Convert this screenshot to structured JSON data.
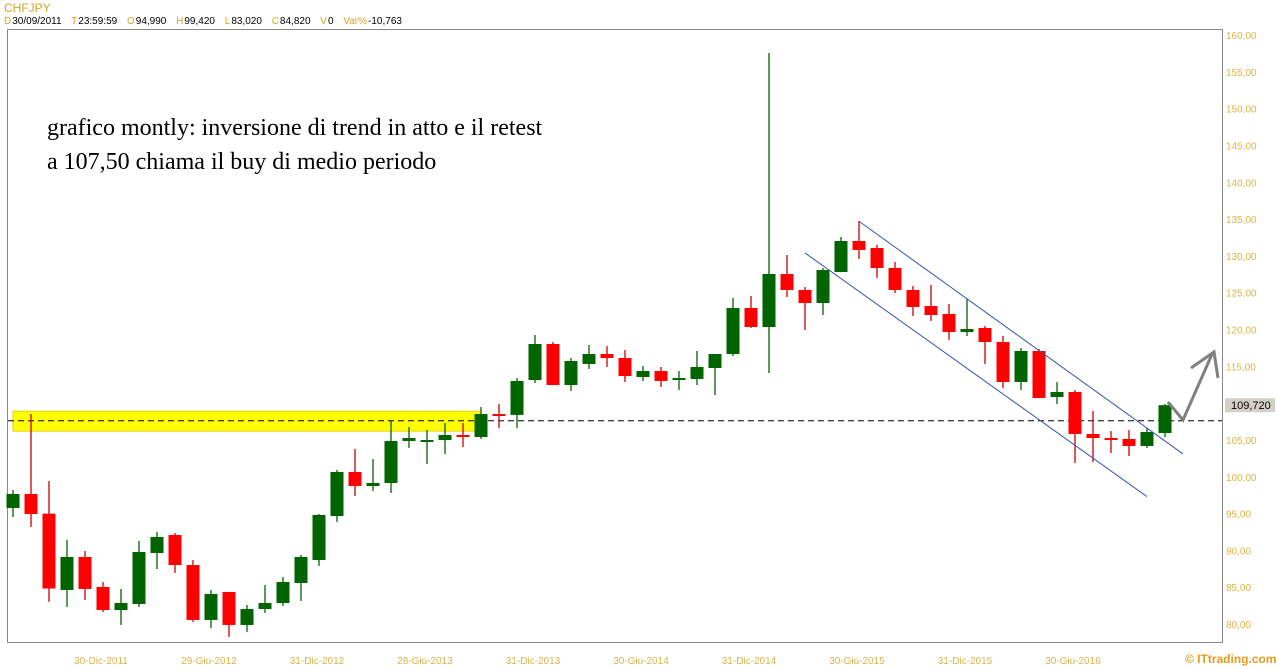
{
  "header": {
    "symbol": "CHFJPY",
    "fields": [
      {
        "key": "D",
        "value": "30/09/2011"
      },
      {
        "key": "T",
        "value": "23:59:59"
      },
      {
        "key": "O",
        "value": "94,990"
      },
      {
        "key": "H",
        "value": "99,420"
      },
      {
        "key": "L",
        "value": "83,020"
      },
      {
        "key": "C",
        "value": "84,820"
      },
      {
        "key": "V",
        "value": "0"
      },
      {
        "key": "Var%",
        "value": "-10,763"
      }
    ]
  },
  "annotation_text": {
    "line1": "grafico montly: inversione di trend in atto e il retest",
    "line2": "a 107,50 chiama il buy di medio periodo"
  },
  "copyright": "© ITtrading.com",
  "chart_data": {
    "type": "candlestick",
    "symbol": "CHFJPY",
    "timeframe": "monthly",
    "ylim": [
      80,
      160
    ],
    "y_ticks": [
      "160,00",
      "155,00",
      "150,00",
      "145,00",
      "140,00",
      "135,00",
      "130,00",
      "125,00",
      "120,00",
      "115,00",
      "105,00",
      "100,00",
      "95,00",
      "90,00",
      "85,00",
      "80,00"
    ],
    "y_tick_values": [
      160,
      155,
      150,
      145,
      140,
      135,
      130,
      125,
      120,
      115,
      105,
      100,
      95,
      90,
      85,
      80
    ],
    "x_ticks": [
      {
        "label": "30-Dic-2011",
        "date": "2011-12"
      },
      {
        "label": "29-Giu-2012",
        "date": "2012-06"
      },
      {
        "label": "31-Dic-2012",
        "date": "2012-12"
      },
      {
        "label": "28-Giu-2013",
        "date": "2013-06"
      },
      {
        "label": "31-Dic-2013",
        "date": "2013-12"
      },
      {
        "label": "30-Giu-2014",
        "date": "2014-06"
      },
      {
        "label": "31-Dic-2014",
        "date": "2014-12"
      },
      {
        "label": "30-Giu-2015",
        "date": "2015-06"
      },
      {
        "label": "31-Dic-2015",
        "date": "2015-12"
      },
      {
        "label": "30-Giu-2016",
        "date": "2016-06"
      }
    ],
    "last_price": {
      "value": 109.72,
      "label": "109,720"
    },
    "colors": {
      "up": "#006400",
      "down": "#ff0000",
      "channel": "#3355aa",
      "zone": "#ffff00",
      "arrow": "#808080",
      "axis_text": "#d9b44a"
    },
    "support_line": 107.6,
    "support_zone": {
      "from_date": "2011-07",
      "to_date": "2013-09",
      "low": 106.2,
      "high": 108.9
    },
    "channel": {
      "upper": [
        {
          "date": "2015-06",
          "price": 134.7
        },
        {
          "date": "2016-12",
          "price": 103.1
        }
      ],
      "lower": [
        {
          "date": "2015-03",
          "price": 130.4
        },
        {
          "date": "2016-10",
          "price": 97.3
        }
      ]
    },
    "candles_columns": [
      "date",
      "open",
      "high",
      "low",
      "close"
    ],
    "candles": [
      [
        "2011-07",
        95.76,
        98.2,
        94.53,
        97.66
      ],
      [
        "2011-08",
        97.66,
        108.52,
        93.18,
        94.94
      ],
      [
        "2011-09",
        94.99,
        99.42,
        83.02,
        84.82
      ],
      [
        "2011-10",
        84.62,
        91.41,
        82.31,
        89.1
      ],
      [
        "2011-11",
        89.1,
        89.92,
        83.26,
        84.76
      ],
      [
        "2011-12",
        85.03,
        85.71,
        81.63,
        81.9
      ],
      [
        "2012-01",
        81.9,
        84.76,
        79.87,
        82.85
      ],
      [
        "2012-02",
        82.72,
        91.28,
        82.31,
        89.78
      ],
      [
        "2012-03",
        89.64,
        92.5,
        87.47,
        91.82
      ],
      [
        "2012-04",
        92.09,
        92.36,
        86.93,
        88.01
      ],
      [
        "2012-05",
        88.01,
        88.69,
        80.27,
        80.55
      ],
      [
        "2012-06",
        80.55,
        84.62,
        79.46,
        84.08
      ],
      [
        "2012-07",
        84.35,
        84.35,
        78.24,
        79.87
      ],
      [
        "2012-08",
        79.87,
        82.58,
        78.92,
        82.04
      ],
      [
        "2012-09",
        82.04,
        85.3,
        81.5,
        82.85
      ],
      [
        "2012-10",
        82.85,
        86.39,
        82.45,
        85.71
      ],
      [
        "2012-11",
        85.57,
        89.37,
        83.13,
        89.1
      ],
      [
        "2012-12",
        88.69,
        94.94,
        87.88,
        94.81
      ],
      [
        "2013-01",
        94.67,
        100.92,
        93.86,
        100.65
      ],
      [
        "2013-02",
        100.65,
        103.77,
        97.39,
        98.74
      ],
      [
        "2013-03",
        98.74,
        102.41,
        98.07,
        99.15
      ],
      [
        "2013-04",
        99.15,
        107.71,
        97.79,
        104.86
      ],
      [
        "2013-05",
        104.86,
        106.76,
        103.91,
        105.26
      ],
      [
        "2013-06",
        104.86,
        106.35,
        101.73,
        104.99
      ],
      [
        "2013-07",
        104.99,
        107.3,
        103.09,
        105.67
      ],
      [
        "2013-08",
        105.67,
        107.3,
        104.04,
        105.53
      ],
      [
        "2013-09",
        105.4,
        109.48,
        105.13,
        108.52
      ],
      [
        "2013-10",
        108.52,
        109.88,
        106.62,
        108.4
      ],
      [
        "2013-11",
        108.4,
        113.41,
        106.62,
        113.01
      ],
      [
        "2013-12",
        113.14,
        119.25,
        112.73,
        118.03
      ],
      [
        "2014-01",
        118.03,
        118.3,
        112.46,
        112.46
      ],
      [
        "2014-02",
        112.46,
        116.13,
        111.65,
        115.72
      ],
      [
        "2014-03",
        115.32,
        117.9,
        114.64,
        116.67
      ],
      [
        "2014-04",
        116.67,
        117.76,
        114.91,
        116.13
      ],
      [
        "2014-05",
        116.13,
        117.22,
        112.87,
        113.68
      ],
      [
        "2014-06",
        113.55,
        115.04,
        113.01,
        114.36
      ],
      [
        "2014-07",
        114.36,
        114.91,
        112.19,
        113.01
      ],
      [
        "2014-08",
        113.14,
        114.36,
        111.78,
        113.41
      ],
      [
        "2014-09",
        113.28,
        117.08,
        112.46,
        114.91
      ],
      [
        "2014-10",
        114.77,
        116.67,
        111.1,
        116.67
      ],
      [
        "2014-11",
        116.67,
        124.28,
        116.4,
        122.92
      ],
      [
        "2014-12",
        122.92,
        124.55,
        120.2,
        120.34
      ],
      [
        "2015-01",
        120.34,
        157.56,
        114.09,
        127.54
      ],
      [
        "2015-02",
        127.54,
        130.12,
        124.42,
        125.37
      ],
      [
        "2015-03",
        125.37,
        125.77,
        119.93,
        123.6
      ],
      [
        "2015-04",
        123.6,
        128.35,
        121.97,
        128.08
      ],
      [
        "2015-05",
        127.81,
        132.56,
        127.81,
        132.02
      ],
      [
        "2015-06",
        132.02,
        134.74,
        129.58,
        130.8
      ],
      [
        "2015-07",
        131.07,
        131.48,
        127.0,
        128.35
      ],
      [
        "2015-08",
        128.35,
        129.17,
        124.96,
        125.37
      ],
      [
        "2015-09",
        125.37,
        125.91,
        121.83,
        123.06
      ],
      [
        "2015-10",
        123.19,
        126.05,
        121.16,
        121.97
      ],
      [
        "2015-11",
        122.11,
        123.46,
        118.58,
        119.66
      ],
      [
        "2015-12",
        119.66,
        124.14,
        119.12,
        120.07
      ],
      [
        "2016-01",
        120.2,
        120.48,
        115.32,
        118.3
      ],
      [
        "2016-02",
        118.3,
        119.12,
        112.05,
        112.87
      ],
      [
        "2016-03",
        112.87,
        117.49,
        111.78,
        117.08
      ],
      [
        "2016-04",
        117.08,
        117.35,
        110.7,
        110.7
      ],
      [
        "2016-05",
        110.83,
        112.87,
        109.88,
        111.51
      ],
      [
        "2016-06",
        111.51,
        111.78,
        101.87,
        105.81
      ],
      [
        "2016-07",
        105.81,
        108.93,
        102.0,
        105.26
      ],
      [
        "2016-08",
        105.26,
        106.21,
        103.23,
        105.13
      ],
      [
        "2016-09",
        105.13,
        106.35,
        102.82,
        104.18
      ],
      [
        "2016-10",
        104.18,
        106.62,
        103.91,
        106.08
      ],
      [
        "2016-11",
        105.94,
        109.88,
        105.4,
        109.72
      ]
    ]
  }
}
